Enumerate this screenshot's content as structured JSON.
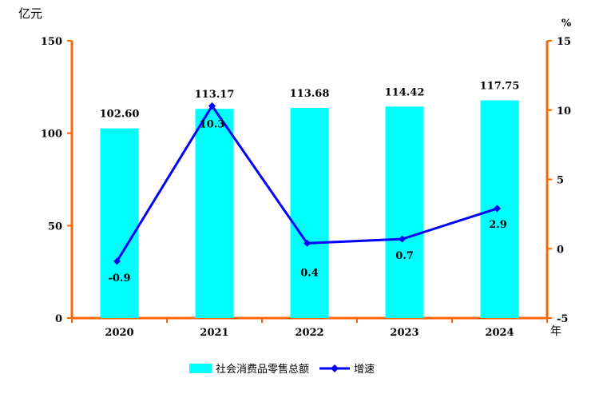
{
  "chart_data": {
    "type": "bar",
    "categories": [
      "2020",
      "2021",
      "2022",
      "2023",
      "2024"
    ],
    "series": [
      {
        "name": "社会消费品零售总额",
        "type": "bar",
        "axis": "left",
        "values": [
          102.6,
          113.17,
          113.68,
          114.42,
          117.75
        ],
        "labels": [
          "102.60",
          "113.17",
          "113.68",
          "114.42",
          "117.75"
        ]
      },
      {
        "name": "增速",
        "type": "line",
        "axis": "right",
        "values": [
          -0.9,
          10.3,
          0.4,
          0.7,
          2.9
        ],
        "labels": [
          "-0.9",
          "10.3",
          "0.4",
          "0.7",
          "2.9"
        ]
      }
    ],
    "y_left": {
      "unit": "亿元",
      "ylim": [
        0,
        150
      ],
      "ticks": [
        "0",
        "50",
        "100",
        "150"
      ]
    },
    "y_right": {
      "unit": "%",
      "ylim": [
        -5,
        15
      ],
      "ticks": [
        "-5",
        "0",
        "5",
        "10",
        "15"
      ]
    },
    "x_unit": "年",
    "legend_position": "bottom",
    "colors": {
      "bar": "#00ffff",
      "line": "#0000ff",
      "axis": "#ff6600"
    }
  }
}
